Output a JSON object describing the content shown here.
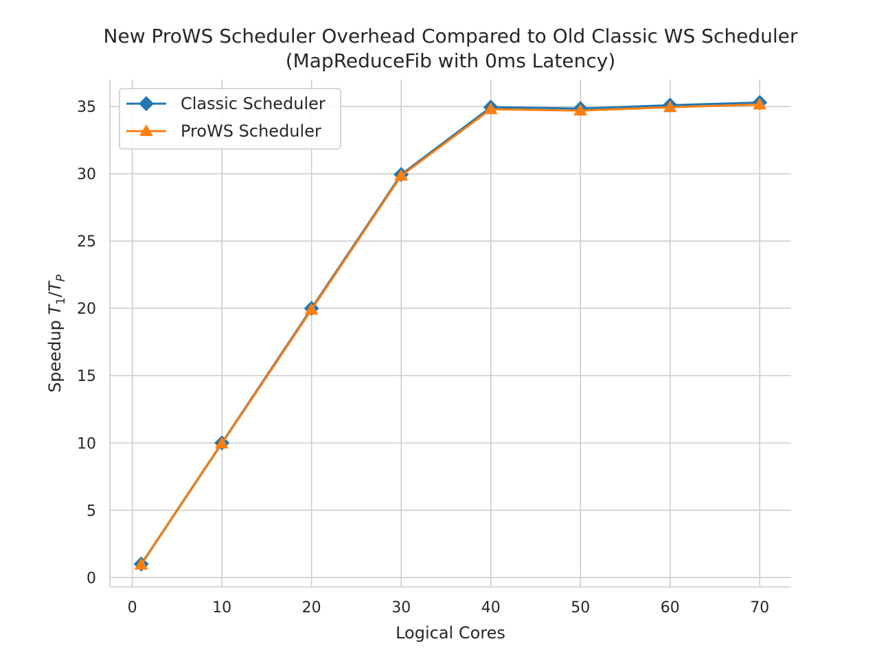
{
  "chart_data": {
    "type": "line",
    "title": "New ProWS Scheduler Overhead Compared to Old Classic WS Scheduler",
    "subtitle": "(MapReduceFib with 0ms Latency)",
    "xlabel": "Logical Cores",
    "ylabel_prefix": "Speedup ",
    "ylabel_math": "T",
    "ylabel_sub1": "1",
    "ylabel_slash": "/",
    "ylabel_math2": "T",
    "ylabel_sub2": "P",
    "xlim": [
      -2.5,
      73.5
    ],
    "ylim": [
      -0.7,
      37
    ],
    "xticks": [
      0,
      10,
      20,
      30,
      40,
      50,
      60,
      70
    ],
    "yticks": [
      0,
      5,
      10,
      15,
      20,
      25,
      30,
      35
    ],
    "grid": true,
    "legend_position": "top-left",
    "series": [
      {
        "name": "Classic Scheduler",
        "color": "#1f77b4",
        "marker": "diamond",
        "x": [
          1,
          10,
          20,
          30,
          40,
          50,
          60,
          70
        ],
        "y": [
          1.0,
          10.0,
          20.0,
          29.95,
          34.95,
          34.85,
          35.1,
          35.3
        ]
      },
      {
        "name": "ProWS Scheduler",
        "color": "#ff7f0e",
        "marker": "triangle",
        "x": [
          1,
          10,
          20,
          30,
          40,
          50,
          60,
          70
        ],
        "y": [
          0.95,
          9.95,
          19.9,
          29.85,
          34.8,
          34.7,
          34.95,
          35.15
        ]
      }
    ]
  }
}
